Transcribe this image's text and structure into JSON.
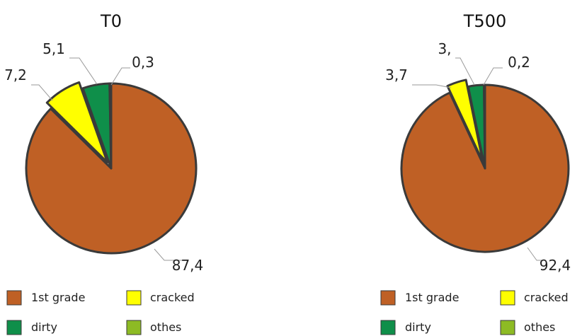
{
  "colors": {
    "1st grade": "#bf6025",
    "cracked": "#ffff00",
    "dirty": "#0f8f4a",
    "othes": "#8dbb24",
    "outline": "#3a3a3a"
  },
  "chart_data": [
    {
      "type": "pie",
      "title": "T0",
      "categories": [
        "1st grade",
        "cracked",
        "dirty",
        "othes"
      ],
      "values": [
        87.4,
        7.2,
        5.1,
        0.3
      ],
      "data_labels": [
        "87,4",
        "7,2",
        "5,1",
        "0,3"
      ],
      "exploded": [
        "cracked"
      ],
      "legend": {
        "placement": "bottom",
        "entries": [
          "1st grade",
          "cracked",
          "dirty",
          "othes"
        ]
      }
    },
    {
      "type": "pie",
      "title": "T500",
      "categories": [
        "1st grade",
        "cracked",
        "dirty",
        "othes"
      ],
      "values": [
        92.4,
        3.7,
        3.0,
        0.2
      ],
      "data_labels": [
        "92,4",
        "3,7",
        "3,",
        "0,2"
      ],
      "exploded": [
        "cracked"
      ],
      "legend": {
        "placement": "bottom",
        "entries": [
          "1st grade",
          "cracked",
          "dirty",
          "othes"
        ]
      }
    }
  ]
}
